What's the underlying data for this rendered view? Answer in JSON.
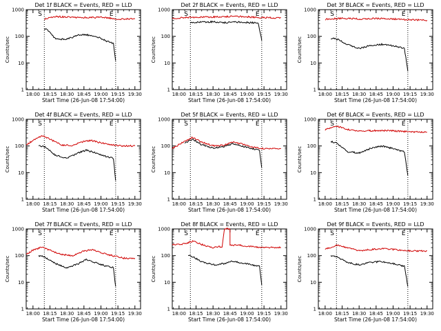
{
  "chart_data": [
    {
      "type": "line",
      "title": "Det 1f BLACK = Events, RED = LLD",
      "xlabel": "Start Time (26-Jun-08 17:54:00)",
      "ylabel": "Counts/sec",
      "xticks": [
        "18:00",
        "18:15",
        "18:30",
        "18:45",
        "19:00",
        "19:15",
        "19:30"
      ],
      "yticks": [
        "1",
        "10",
        "100",
        "1000"
      ],
      "yscale": "log",
      "ylim": [
        1,
        1000
      ],
      "markers": [
        {
          "label": "S",
          "time": "18:10"
        },
        {
          "label": "E",
          "time": "19:13"
        }
      ],
      "series": [
        {
          "color": "#d00000",
          "points": [
            [
              "18:10",
              440
            ],
            [
              "18:20",
              560
            ],
            [
              "18:30",
              520
            ],
            [
              "18:40",
              510
            ],
            [
              "18:50",
              500
            ],
            [
              "19:00",
              520
            ],
            [
              "19:10",
              470
            ],
            [
              "19:20",
              440
            ],
            [
              "19:30",
              450
            ]
          ]
        },
        {
          "color": "#000000",
          "points": [
            [
              "18:10",
              190
            ],
            [
              "18:13",
              170
            ],
            [
              "18:20",
              80
            ],
            [
              "18:30",
              78
            ],
            [
              "18:40",
              110
            ],
            [
              "18:45",
              115
            ],
            [
              "18:55",
              105
            ],
            [
              "19:05",
              65
            ],
            [
              "19:11",
              55
            ],
            [
              "19:13",
              12
            ]
          ]
        }
      ]
    },
    {
      "type": "line",
      "title": "Det 2f BLACK = Events, RED = LLD",
      "xlabel": "Start Time (26-Jun-08 17:54:00)",
      "ylabel": "Counts/sec",
      "xticks": [
        "18:00",
        "18:15",
        "18:30",
        "18:45",
        "19:00",
        "19:15",
        "19:30"
      ],
      "yticks": [
        "1",
        "10",
        "100",
        "1000"
      ],
      "yscale": "log",
      "ylim": [
        1,
        1000
      ],
      "markers": [
        {
          "label": "S",
          "time": "18:10"
        },
        {
          "label": "E",
          "time": "19:13"
        }
      ],
      "series": [
        {
          "color": "#d00000",
          "points": [
            [
              "17:54",
              480
            ],
            [
              "18:05",
              500
            ],
            [
              "18:15",
              520
            ],
            [
              "18:30",
              530
            ],
            [
              "18:45",
              560
            ],
            [
              "19:00",
              540
            ],
            [
              "19:15",
              500
            ],
            [
              "19:30",
              500
            ]
          ]
        },
        {
          "color": "#000000",
          "points": [
            [
              "18:10",
              330
            ],
            [
              "18:20",
              340
            ],
            [
              "18:30",
              350
            ],
            [
              "18:40",
              330
            ],
            [
              "18:50",
              340
            ],
            [
              "19:00",
              330
            ],
            [
              "19:10",
              320
            ],
            [
              "19:13",
              70
            ]
          ]
        }
      ]
    },
    {
      "type": "line",
      "title": "Det 3f BLACK = Events, RED = LLD",
      "xlabel": "Start Time (26-Jun-08 17:54:00)",
      "ylabel": "Counts/sec",
      "xticks": [
        "18:00",
        "18:15",
        "18:30",
        "18:45",
        "19:00",
        "19:15",
        "19:30"
      ],
      "yticks": [
        "1",
        "10",
        "100",
        "1000"
      ],
      "yscale": "log",
      "ylim": [
        1,
        1000
      ],
      "markers": [
        {
          "label": "S",
          "time": "18:10"
        },
        {
          "label": "E",
          "time": "19:13"
        }
      ],
      "series": [
        {
          "color": "#d00000",
          "points": [
            [
              "18:00",
              430
            ],
            [
              "18:15",
              480
            ],
            [
              "18:30",
              450
            ],
            [
              "18:45",
              470
            ],
            [
              "19:00",
              450
            ],
            [
              "19:15",
              420
            ],
            [
              "19:30",
              400
            ]
          ]
        },
        {
          "color": "#000000",
          "points": [
            [
              "18:05",
              85
            ],
            [
              "18:10",
              80
            ],
            [
              "18:20",
              50
            ],
            [
              "18:30",
              35
            ],
            [
              "18:40",
              45
            ],
            [
              "18:50",
              50
            ],
            [
              "19:00",
              45
            ],
            [
              "19:10",
              35
            ],
            [
              "19:13",
              5
            ]
          ]
        }
      ]
    },
    {
      "type": "line",
      "title": "Det 4f BLACK = Events, RED = LLD",
      "xlabel": "Start Time (26-Jun-08 17:54:00)",
      "ylabel": "Counts/sec",
      "xticks": [
        "18:00",
        "18:15",
        "18:30",
        "18:45",
        "19:00",
        "19:15",
        "19:30"
      ],
      "yticks": [
        "1",
        "10",
        "100",
        "1000"
      ],
      "yscale": "log",
      "ylim": [
        1,
        1000
      ],
      "markers": [
        {
          "label": "S",
          "time": "18:10"
        },
        {
          "label": "E",
          "time": "19:13"
        }
      ],
      "series": [
        {
          "color": "#d00000",
          "points": [
            [
              "17:54",
              110
            ],
            [
              "18:00",
              160
            ],
            [
              "18:08",
              250
            ],
            [
              "18:15",
              180
            ],
            [
              "18:25",
              110
            ],
            [
              "18:35",
              105
            ],
            [
              "18:45",
              150
            ],
            [
              "18:52",
              160
            ],
            [
              "19:00",
              130
            ],
            [
              "19:10",
              110
            ],
            [
              "19:20",
              100
            ],
            [
              "19:30",
              100
            ]
          ]
        },
        {
          "color": "#000000",
          "points": [
            [
              "18:05",
              100
            ],
            [
              "18:10",
              95
            ],
            [
              "18:20",
              45
            ],
            [
              "18:30",
              35
            ],
            [
              "18:40",
              55
            ],
            [
              "18:47",
              70
            ],
            [
              "18:55",
              55
            ],
            [
              "19:05",
              40
            ],
            [
              "19:11",
              35
            ],
            [
              "19:13",
              5
            ]
          ]
        }
      ]
    },
    {
      "type": "line",
      "title": "Det 5f BLACK = Events, RED = LLD",
      "xlabel": "Start Time (26-Jun-08 17:54:00)",
      "ylabel": "Counts/sec",
      "xticks": [
        "18:00",
        "18:15",
        "18:30",
        "18:45",
        "19:00",
        "19:15",
        "19:30"
      ],
      "yticks": [
        "1",
        "10",
        "100",
        "1000"
      ],
      "yscale": "log",
      "ylim": [
        1,
        1000
      ],
      "markers": [
        {
          "label": "S",
          "time": "18:10"
        },
        {
          "label": "E",
          "time": "19:13"
        }
      ],
      "series": [
        {
          "color": "#d00000",
          "points": [
            [
              "17:54",
              80
            ],
            [
              "18:05",
              150
            ],
            [
              "18:12",
              210
            ],
            [
              "18:20",
              140
            ],
            [
              "18:30",
              100
            ],
            [
              "18:40",
              110
            ],
            [
              "18:47",
              140
            ],
            [
              "18:55",
              120
            ],
            [
              "19:05",
              90
            ],
            [
              "19:15",
              80
            ],
            [
              "19:30",
              80
            ]
          ]
        },
        {
          "color": "#000000",
          "points": [
            [
              "18:05",
              130
            ],
            [
              "18:12",
              180
            ],
            [
              "18:20",
              110
            ],
            [
              "18:30",
              85
            ],
            [
              "18:40",
              95
            ],
            [
              "18:47",
              120
            ],
            [
              "18:55",
              100
            ],
            [
              "19:05",
              80
            ],
            [
              "19:11",
              70
            ],
            [
              "19:13",
              15
            ]
          ]
        }
      ]
    },
    {
      "type": "line",
      "title": "Det 6f BLACK = Events, RED = LLD",
      "xlabel": "Start Time (26-Jun-08 17:54:00)",
      "ylabel": "Counts/sec",
      "xticks": [
        "18:00",
        "18:15",
        "18:30",
        "18:45",
        "19:00",
        "19:15",
        "19:30"
      ],
      "yticks": [
        "1",
        "10",
        "100",
        "1000"
      ],
      "yscale": "log",
      "ylim": [
        1,
        1000
      ],
      "markers": [
        {
          "label": "S",
          "time": "18:10"
        },
        {
          "label": "E",
          "time": "19:13"
        }
      ],
      "series": [
        {
          "color": "#d00000",
          "points": [
            [
              "18:00",
              400
            ],
            [
              "18:10",
              560
            ],
            [
              "18:20",
              420
            ],
            [
              "18:30",
              360
            ],
            [
              "18:45",
              380
            ],
            [
              "19:00",
              370
            ],
            [
              "19:15",
              340
            ],
            [
              "19:30",
              330
            ]
          ]
        },
        {
          "color": "#000000",
          "points": [
            [
              "18:05",
              150
            ],
            [
              "18:10",
              130
            ],
            [
              "18:20",
              60
            ],
            [
              "18:30",
              55
            ],
            [
              "18:40",
              80
            ],
            [
              "18:50",
              100
            ],
            [
              "19:00",
              80
            ],
            [
              "19:10",
              60
            ],
            [
              "19:13",
              8
            ]
          ]
        }
      ]
    },
    {
      "type": "line",
      "title": "Det 7f BLACK = Events, RED = LLD",
      "xlabel": "Start Time (26-Jun-08 17:54:00)",
      "ylabel": "Counts/sec",
      "xticks": [
        "18:00",
        "18:15",
        "18:30",
        "18:45",
        "19:00",
        "19:15",
        "19:30"
      ],
      "yticks": [
        "1",
        "10",
        "100",
        "1000"
      ],
      "yscale": "log",
      "ylim": [
        1,
        1000
      ],
      "markers": [
        {
          "label": "S",
          "time": "18:10"
        },
        {
          "label": "E",
          "time": "19:13"
        }
      ],
      "series": [
        {
          "color": "#d00000",
          "points": [
            [
              "17:54",
              110
            ],
            [
              "18:00",
              160
            ],
            [
              "18:08",
              210
            ],
            [
              "18:15",
              160
            ],
            [
              "18:25",
              110
            ],
            [
              "18:35",
              100
            ],
            [
              "18:45",
              150
            ],
            [
              "18:52",
              165
            ],
            [
              "19:00",
              130
            ],
            [
              "19:10",
              100
            ],
            [
              "19:20",
              80
            ],
            [
              "19:30",
              80
            ]
          ]
        },
        {
          "color": "#000000",
          "points": [
            [
              "18:05",
              100
            ],
            [
              "18:10",
              90
            ],
            [
              "18:20",
              50
            ],
            [
              "18:30",
              35
            ],
            [
              "18:40",
              50
            ],
            [
              "18:47",
              70
            ],
            [
              "18:55",
              55
            ],
            [
              "19:05",
              40
            ],
            [
              "19:11",
              35
            ],
            [
              "19:13",
              7
            ]
          ]
        }
      ]
    },
    {
      "type": "line",
      "title": "Det 8f BLACK = Events, RED = LLD",
      "xlabel": "Start Time (26-Jun-08 17:54:00)",
      "ylabel": "Counts/sec",
      "xticks": [
        "18:00",
        "18:15",
        "18:30",
        "18:45",
        "19:00",
        "19:15",
        "19:30"
      ],
      "yticks": [
        "1",
        "10",
        "100",
        "1000"
      ],
      "yscale": "log",
      "ylim": [
        1,
        1000
      ],
      "markers": [
        {
          "label": "S",
          "time": "18:10"
        },
        {
          "label": "E",
          "time": "19:13"
        }
      ],
      "series": [
        {
          "color": "#d00000",
          "points": [
            [
              "17:54",
              250
            ],
            [
              "18:05",
              280
            ],
            [
              "18:12",
              350
            ],
            [
              "18:20",
              260
            ],
            [
              "18:30",
              200
            ],
            [
              "18:38",
              220
            ],
            [
              "18:40",
              1000
            ],
            [
              "18:41",
              1000
            ],
            [
              "18:42",
              1000
            ],
            [
              "18:43",
              1000
            ],
            [
              "18:44",
              1000
            ],
            [
              "18:45",
              1000
            ],
            [
              "18:45",
              250
            ],
            [
              "18:55",
              240
            ],
            [
              "19:05",
              220
            ],
            [
              "19:15",
              200
            ],
            [
              "19:30",
              200
            ]
          ]
        },
        {
          "color": "#000000",
          "points": [
            [
              "18:08",
              100
            ],
            [
              "18:12",
              90
            ],
            [
              "18:20",
              60
            ],
            [
              "18:30",
              45
            ],
            [
              "18:40",
              50
            ],
            [
              "18:45",
              60
            ],
            [
              "18:55",
              55
            ],
            [
              "19:05",
              45
            ],
            [
              "19:11",
              40
            ],
            [
              "19:13",
              8
            ]
          ]
        }
      ]
    },
    {
      "type": "line",
      "title": "Det 9f BLACK = Events, RED = LLD",
      "xlabel": "Start Time (26-Jun-08 17:54:00)",
      "ylabel": "Counts/sec",
      "xticks": [
        "18:00",
        "18:15",
        "18:30",
        "18:45",
        "19:00",
        "19:15",
        "19:30"
      ],
      "yticks": [
        "1",
        "10",
        "100",
        "1000"
      ],
      "yscale": "log",
      "ylim": [
        1,
        1000
      ],
      "markers": [
        {
          "label": "S",
          "time": "18:10"
        },
        {
          "label": "E",
          "time": "19:13"
        }
      ],
      "series": [
        {
          "color": "#d00000",
          "points": [
            [
              "18:00",
              170
            ],
            [
              "18:10",
              250
            ],
            [
              "18:20",
              200
            ],
            [
              "18:30",
              150
            ],
            [
              "18:40",
              170
            ],
            [
              "18:50",
              180
            ],
            [
              "19:00",
              170
            ],
            [
              "19:15",
              150
            ],
            [
              "19:30",
              150
            ]
          ]
        },
        {
          "color": "#000000",
          "points": [
            [
              "18:05",
              100
            ],
            [
              "18:10",
              90
            ],
            [
              "18:20",
              55
            ],
            [
              "18:30",
              45
            ],
            [
              "18:40",
              55
            ],
            [
              "18:50",
              60
            ],
            [
              "19:00",
              50
            ],
            [
              "19:10",
              40
            ],
            [
              "19:13",
              7
            ]
          ]
        }
      ]
    }
  ]
}
